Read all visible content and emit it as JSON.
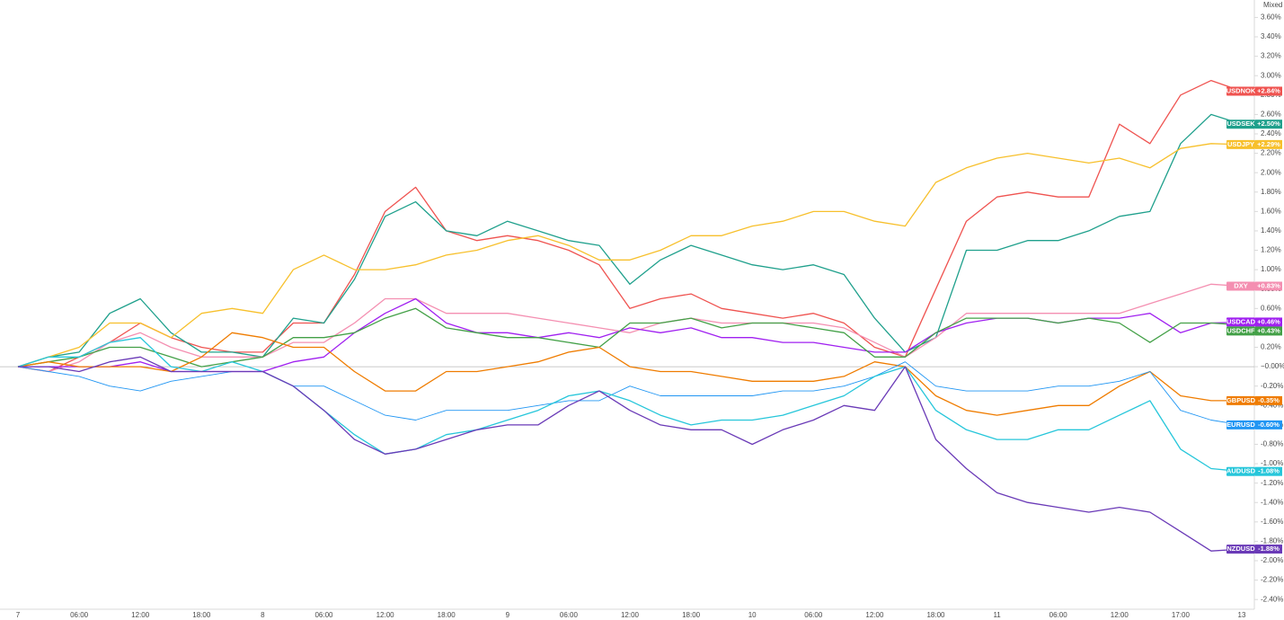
{
  "chart_data": {
    "type": "line",
    "annotation": "Mixed",
    "categories": [
      "7",
      null,
      "06:00",
      null,
      "12:00",
      null,
      "18:00",
      null,
      "8",
      null,
      "06:00",
      null,
      "12:00",
      null,
      "18:00",
      null,
      "9",
      null,
      "06:00",
      null,
      "12:00",
      null,
      "18:00",
      null,
      "10",
      null,
      "06:00",
      null,
      "12:00",
      null,
      "18:00",
      null,
      "11",
      null,
      "06:00",
      null,
      "12:00",
      null,
      "17:00",
      null,
      "13"
    ],
    "ylim": [
      -2.5,
      3.78
    ],
    "yticks": [
      {
        "value": -2.4,
        "label": "-2.40%"
      },
      {
        "value": -2.2,
        "label": "-2.20%"
      },
      {
        "value": -2.0,
        "label": "-2.00%"
      },
      {
        "value": -1.8,
        "label": "-1.80%"
      },
      {
        "value": -1.6,
        "label": "-1.60%"
      },
      {
        "value": -1.4,
        "label": "-1.40%"
      },
      {
        "value": -1.2,
        "label": "-1.20%"
      },
      {
        "value": -1.0,
        "label": "-1.00%"
      },
      {
        "value": -0.8,
        "label": "-0.80%"
      },
      {
        "value": -0.6,
        "label": "-0.60%"
      },
      {
        "value": -0.4,
        "label": "-0.40%"
      },
      {
        "value": -0.2,
        "label": "-0.20%"
      },
      {
        "value": 0,
        "label": "−0.00%"
      },
      {
        "value": 0.2,
        "label": "0.20%"
      },
      {
        "value": 0.4,
        "label": "0.40%"
      },
      {
        "value": 0.6,
        "label": "0.60%"
      },
      {
        "value": 0.8,
        "label": "0.80%"
      },
      {
        "value": 1.0,
        "label": "1.00%"
      },
      {
        "value": 1.2,
        "label": "1.20%"
      },
      {
        "value": 1.4,
        "label": "1.40%"
      },
      {
        "value": 1.6,
        "label": "1.60%"
      },
      {
        "value": 1.8,
        "label": "1.80%"
      },
      {
        "value": 2.0,
        "label": "2.00%"
      },
      {
        "value": 2.2,
        "label": "2.20%"
      },
      {
        "value": 2.4,
        "label": "2.40%"
      },
      {
        "value": 2.6,
        "label": "2.60%"
      },
      {
        "value": 2.8,
        "label": "2.80%"
      },
      {
        "value": 3.0,
        "label": "3.00%"
      },
      {
        "value": 3.2,
        "label": "3.20%"
      },
      {
        "value": 3.4,
        "label": "3.40%"
      },
      {
        "value": 3.6,
        "label": "3.60%"
      }
    ],
    "grid": false,
    "series": [
      {
        "name": "USDNOK",
        "color": "#ef5350",
        "values": [
          0,
          -0.05,
          0.1,
          0.25,
          0.45,
          0.3,
          0.2,
          0.15,
          0.15,
          0.45,
          0.45,
          0.95,
          1.6,
          1.85,
          1.4,
          1.3,
          1.35,
          1.3,
          1.2,
          1.05,
          0.6,
          0.7,
          0.75,
          0.6,
          0.55,
          0.5,
          0.55,
          0.45,
          0.2,
          0.1,
          0.8,
          1.5,
          1.75,
          1.8,
          1.75,
          1.75,
          2.5,
          2.3,
          2.8,
          2.95,
          2.84
        ],
        "value_labels": [
          null,
          null,
          null,
          null,
          null,
          null,
          null,
          null,
          null,
          null,
          null,
          null,
          null,
          null,
          null,
          null,
          null,
          null,
          null,
          null,
          null,
          null,
          null,
          null,
          null,
          null,
          null,
          null,
          null,
          null,
          null,
          null,
          null,
          null,
          null,
          null,
          null,
          null,
          null,
          null,
          "+2.84%"
        ]
      },
      {
        "name": "USDSEK",
        "color": "#1fa08c",
        "values": [
          0,
          0.1,
          0.15,
          0.55,
          0.7,
          0.35,
          0.15,
          0.15,
          0.1,
          0.5,
          0.45,
          0.9,
          1.55,
          1.7,
          1.4,
          1.35,
          1.5,
          1.4,
          1.3,
          1.25,
          0.85,
          1.1,
          1.25,
          1.15,
          1.05,
          1.0,
          1.05,
          0.95,
          0.5,
          0.15,
          0.3,
          1.2,
          1.2,
          1.3,
          1.3,
          1.4,
          1.55,
          1.6,
          2.3,
          2.6,
          2.5
        ],
        "value_labels": [
          null,
          null,
          null,
          null,
          null,
          null,
          null,
          null,
          null,
          null,
          null,
          null,
          null,
          null,
          null,
          null,
          null,
          null,
          null,
          null,
          null,
          null,
          null,
          null,
          null,
          null,
          null,
          null,
          null,
          null,
          null,
          null,
          null,
          null,
          null,
          null,
          null,
          null,
          null,
          null,
          "+2.50%"
        ]
      },
      {
        "name": "USDJPY",
        "color": "#f7c02c",
        "values": [
          0,
          0.1,
          0.2,
          0.45,
          0.45,
          0.3,
          0.55,
          0.6,
          0.55,
          1.0,
          1.15,
          1.0,
          1.0,
          1.05,
          1.15,
          1.2,
          1.3,
          1.35,
          1.25,
          1.1,
          1.1,
          1.2,
          1.35,
          1.35,
          1.45,
          1.5,
          1.6,
          1.6,
          1.5,
          1.45,
          1.9,
          2.05,
          2.15,
          2.2,
          2.15,
          2.1,
          2.15,
          2.05,
          2.25,
          2.3,
          2.29
        ],
        "value_labels": [
          null,
          null,
          null,
          null,
          null,
          null,
          null,
          null,
          null,
          null,
          null,
          null,
          null,
          null,
          null,
          null,
          null,
          null,
          null,
          null,
          null,
          null,
          null,
          null,
          null,
          null,
          null,
          null,
          null,
          null,
          null,
          null,
          null,
          null,
          null,
          null,
          null,
          null,
          null,
          null,
          "+2.29%"
        ]
      },
      {
        "name": "DXY",
        "color": "#f48fb1",
        "values": [
          0,
          -0.05,
          0.05,
          0.25,
          0.35,
          0.2,
          0.1,
          0.1,
          0.1,
          0.25,
          0.25,
          0.45,
          0.7,
          0.7,
          0.55,
          0.55,
          0.55,
          0.5,
          0.45,
          0.4,
          0.35,
          0.45,
          0.5,
          0.45,
          0.45,
          0.45,
          0.45,
          0.4,
          0.25,
          0.1,
          0.3,
          0.55,
          0.55,
          0.55,
          0.55,
          0.55,
          0.55,
          0.65,
          0.75,
          0.85,
          0.83
        ],
        "value_labels": [
          null,
          null,
          null,
          null,
          null,
          null,
          null,
          null,
          null,
          null,
          null,
          null,
          null,
          null,
          null,
          null,
          null,
          null,
          null,
          null,
          null,
          null,
          null,
          null,
          null,
          null,
          null,
          null,
          null,
          null,
          null,
          null,
          null,
          null,
          null,
          null,
          null,
          null,
          null,
          null,
          "+0.83%"
        ]
      },
      {
        "name": "USDCAD",
        "color": "#a020f0",
        "values": [
          0,
          0,
          0,
          0,
          0.05,
          -0.05,
          -0.05,
          -0.05,
          -0.05,
          0.05,
          0.1,
          0.35,
          0.55,
          0.7,
          0.45,
          0.35,
          0.35,
          0.3,
          0.35,
          0.3,
          0.4,
          0.35,
          0.4,
          0.3,
          0.3,
          0.25,
          0.25,
          0.2,
          0.15,
          0.15,
          0.35,
          0.45,
          0.5,
          0.5,
          0.45,
          0.5,
          0.5,
          0.55,
          0.35,
          0.45,
          0.46
        ],
        "value_labels": [
          null,
          null,
          null,
          null,
          null,
          null,
          null,
          null,
          null,
          null,
          null,
          null,
          null,
          null,
          null,
          null,
          null,
          null,
          null,
          null,
          null,
          null,
          null,
          null,
          null,
          null,
          null,
          null,
          null,
          null,
          null,
          null,
          null,
          null,
          null,
          null,
          null,
          null,
          null,
          null,
          "+0.46%"
        ]
      },
      {
        "name": "USDCHF",
        "color": "#43a047",
        "values": [
          0,
          0.05,
          0.1,
          0.2,
          0.2,
          0.1,
          0.0,
          0.05,
          0.1,
          0.3,
          0.3,
          0.35,
          0.5,
          0.6,
          0.4,
          0.35,
          0.3,
          0.3,
          0.25,
          0.2,
          0.45,
          0.45,
          0.5,
          0.4,
          0.45,
          0.45,
          0.4,
          0.35,
          0.1,
          0.1,
          0.35,
          0.5,
          0.5,
          0.5,
          0.45,
          0.5,
          0.45,
          0.25,
          0.45,
          0.45,
          0.43
        ],
        "value_labels": [
          null,
          null,
          null,
          null,
          null,
          null,
          null,
          null,
          null,
          null,
          null,
          null,
          null,
          null,
          null,
          null,
          null,
          null,
          null,
          null,
          null,
          null,
          null,
          null,
          null,
          null,
          null,
          null,
          null,
          null,
          null,
          null,
          null,
          null,
          null,
          null,
          null,
          null,
          null,
          null,
          "+0.43%"
        ]
      },
      {
        "name": "GBPUSD",
        "color": "#ef7c00",
        "values": [
          0,
          0.05,
          0.0,
          0.0,
          0.0,
          -0.05,
          0.1,
          0.35,
          0.3,
          0.2,
          0.2,
          -0.05,
          -0.25,
          -0.25,
          -0.05,
          -0.05,
          0.0,
          0.05,
          0.15,
          0.2,
          0.0,
          -0.05,
          -0.05,
          -0.1,
          -0.15,
          -0.15,
          -0.15,
          -0.1,
          0.05,
          0.0,
          -0.3,
          -0.45,
          -0.5,
          -0.45,
          -0.4,
          -0.4,
          -0.2,
          -0.05,
          -0.3,
          -0.35,
          -0.35
        ],
        "value_labels": [
          null,
          null,
          null,
          null,
          null,
          null,
          null,
          null,
          null,
          null,
          null,
          null,
          null,
          null,
          null,
          null,
          null,
          null,
          null,
          null,
          null,
          null,
          null,
          null,
          null,
          null,
          null,
          null,
          null,
          null,
          null,
          null,
          null,
          null,
          null,
          null,
          null,
          null,
          null,
          null,
          "-0.35%"
        ]
      },
      {
        "name": "EURUSD",
        "color": "#2196f3",
        "values": [
          0,
          -0.05,
          -0.1,
          -0.2,
          -0.25,
          -0.15,
          -0.1,
          -0.05,
          -0.05,
          -0.2,
          -0.2,
          -0.35,
          -0.5,
          -0.55,
          -0.45,
          -0.45,
          -0.45,
          -0.4,
          -0.35,
          -0.35,
          -0.2,
          -0.3,
          -0.3,
          -0.3,
          -0.3,
          -0.25,
          -0.25,
          -0.2,
          -0.1,
          0.05,
          -0.2,
          -0.25,
          -0.25,
          -0.25,
          -0.2,
          -0.2,
          -0.15,
          -0.05,
          -0.45,
          -0.55,
          -0.6
        ],
        "value_labels": [
          null,
          null,
          null,
          null,
          null,
          null,
          null,
          null,
          null,
          null,
          null,
          null,
          null,
          null,
          null,
          null,
          null,
          null,
          null,
          null,
          null,
          null,
          null,
          null,
          null,
          null,
          null,
          null,
          null,
          null,
          null,
          null,
          null,
          null,
          null,
          null,
          null,
          null,
          null,
          null,
          "-0.60%"
        ]
      },
      {
        "name": "AUDUSD",
        "color": "#26c6da",
        "values": [
          0,
          0.1,
          0.1,
          0.25,
          0.3,
          0.0,
          -0.05,
          0.05,
          -0.05,
          -0.2,
          -0.45,
          -0.7,
          -0.9,
          -0.85,
          -0.7,
          -0.65,
          -0.55,
          -0.45,
          -0.3,
          -0.25,
          -0.35,
          -0.5,
          -0.6,
          -0.55,
          -0.55,
          -0.5,
          -0.4,
          -0.3,
          -0.1,
          0.0,
          -0.45,
          -0.65,
          -0.75,
          -0.75,
          -0.65,
          -0.65,
          -0.5,
          -0.35,
          -0.85,
          -1.05,
          -1.08
        ],
        "value_labels": [
          null,
          null,
          null,
          null,
          null,
          null,
          null,
          null,
          null,
          null,
          null,
          null,
          null,
          null,
          null,
          null,
          null,
          null,
          null,
          null,
          null,
          null,
          null,
          null,
          null,
          null,
          null,
          null,
          null,
          null,
          null,
          null,
          null,
          null,
          null,
          null,
          null,
          null,
          null,
          null,
          "-1.08%"
        ]
      },
      {
        "name": "NZDUSD",
        "color": "#6a3ab7",
        "values": [
          0,
          0.0,
          -0.05,
          0.05,
          0.1,
          -0.05,
          -0.05,
          -0.05,
          -0.05,
          -0.2,
          -0.45,
          -0.75,
          -0.9,
          -0.85,
          -0.75,
          -0.65,
          -0.6,
          -0.6,
          -0.4,
          -0.25,
          -0.45,
          -0.6,
          -0.65,
          -0.65,
          -0.8,
          -0.65,
          -0.55,
          -0.4,
          -0.45,
          0.0,
          -0.75,
          -1.05,
          -1.3,
          -1.4,
          -1.45,
          -1.5,
          -1.45,
          -1.5,
          -1.7,
          -1.9,
          -1.88
        ],
        "value_labels": [
          null,
          null,
          null,
          null,
          null,
          null,
          null,
          null,
          null,
          null,
          null,
          null,
          null,
          null,
          null,
          null,
          null,
          null,
          null,
          null,
          null,
          null,
          null,
          null,
          null,
          null,
          null,
          null,
          null,
          null,
          null,
          null,
          null,
          null,
          null,
          null,
          null,
          null,
          null,
          null,
          "-1.88%"
        ]
      }
    ]
  }
}
